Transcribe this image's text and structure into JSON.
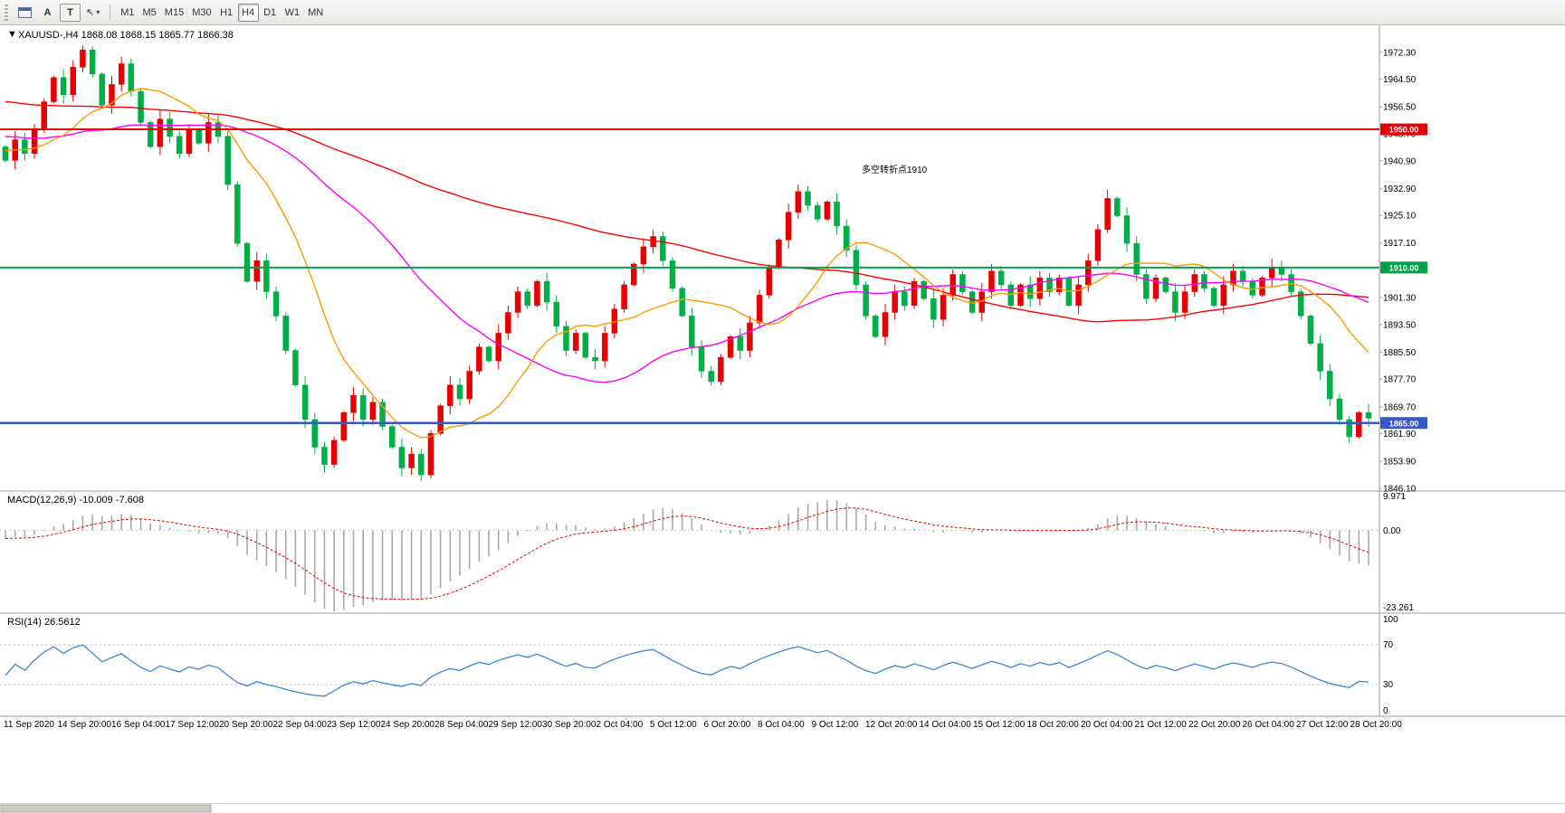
{
  "toolbar": {
    "button_a": "A",
    "button_t": "T",
    "cursor_icon": "↖",
    "caret": "▾",
    "timeframes": [
      "M1",
      "M5",
      "M15",
      "M30",
      "H1",
      "H4",
      "D1",
      "W1",
      "MN"
    ],
    "active_timeframe": "H4"
  },
  "chart": {
    "title_marker": "▼",
    "title": "XAUUSD-,H4  1868.08 1868.15 1865.77 1866.38",
    "symbol": "XAUUSD-",
    "timeframe": "H4",
    "annotation": {
      "text": "多空转折点1910",
      "color": "#ee1b1b"
    },
    "y_axis": {
      "labels": [
        "1972.30",
        "1964.50",
        "1956.50",
        "1948.70",
        "1940.90",
        "1932.90",
        "1925.10",
        "1917.10",
        "1909.30",
        "1901.30",
        "1893.50",
        "1885.50",
        "1877.70",
        "1869.70",
        "1861.90",
        "1853.90",
        "1846.10"
      ]
    },
    "price_tags": [
      {
        "label": "1950.00",
        "price": 1950.0,
        "color": "#e60000",
        "width": 2
      },
      {
        "label": "1910.00",
        "price": 1910.0,
        "color": "#00a14b",
        "width": 2
      },
      {
        "label": "1865.00",
        "price": 1865.0,
        "color": "#3657c8",
        "width": 2.5
      }
    ],
    "x_axis": {
      "labels": [
        "11 Sep 2020",
        "14 Sep 20:00",
        "16 Sep 04:00",
        "17 Sep 12:00",
        "20 Sep 20:00",
        "22 Sep 04:00",
        "23 Sep 12:00",
        "24 Sep 20:00",
        "28 Sep 04:00",
        "29 Sep 12:00",
        "30 Sep 20:00",
        "2 Oct 04:00",
        "5 Oct 12:00",
        "6 Oct 20:00",
        "8 Oct 04:00",
        "9 Oct 12:00",
        "12 Oct 20:00",
        "14 Oct 04:00",
        "15 Oct 12:00",
        "18 Oct 20:00",
        "20 Oct 04:00",
        "21 Oct 12:00",
        "22 Oct 20:00",
        "26 Oct 04:00",
        "27 Oct 12:00",
        "28 Oct 20:00"
      ]
    }
  },
  "panels": {
    "macd": {
      "title": "MACD(12,26,9) -10.009 -7.608",
      "axis_labels": [
        "9.971",
        "0.00",
        "-23.261"
      ],
      "axis_values": [
        9.971,
        0,
        -23.261
      ]
    },
    "rsi": {
      "title": "RSI(14) 26.5612",
      "axis_labels": [
        "100",
        "70",
        "30",
        "0"
      ],
      "axis_values": [
        100,
        70,
        30,
        0
      ],
      "guide_levels": [
        70,
        30
      ]
    }
  },
  "chart_data": {
    "type": "candlestick",
    "title": "XAUUSD H4",
    "ohlc_current": {
      "open": 1868.08,
      "high": 1868.15,
      "low": 1865.77,
      "close": 1866.38
    },
    "levels": {
      "resistance": 1950.0,
      "pivot": 1910.0,
      "support": 1865.0
    },
    "y_axis_range": [
      1844.5,
      1977.5
    ],
    "x_axis_labels": [
      "11 Sep 2020",
      "14 Sep 20:00",
      "16 Sep 04:00",
      "17 Sep 12:00",
      "20 Sep 20:00",
      "22 Sep 04:00",
      "23 Sep 12:00",
      "24 Sep 20:00",
      "28 Sep 04:00",
      "29 Sep 12:00",
      "30 Sep 20:00",
      "2 Oct 04:00",
      "5 Oct 12:00",
      "6 Oct 20:00",
      "8 Oct 04:00",
      "9 Oct 12:00",
      "12 Oct 20:00",
      "14 Oct 04:00",
      "15 Oct 12:00",
      "18 Oct 20:00",
      "20 Oct 04:00",
      "21 Oct 12:00",
      "22 Oct 20:00",
      "26 Oct 04:00",
      "27 Oct 12:00",
      "28 Oct 20:00"
    ],
    "closes": [
      1941,
      1947,
      1943,
      1950,
      1958,
      1965,
      1960,
      1968,
      1973,
      1966,
      1957,
      1963,
      1969,
      1961,
      1952,
      1945,
      1953,
      1948,
      1943,
      1950,
      1946,
      1952,
      1948,
      1934,
      1917,
      1906,
      1912,
      1903,
      1896,
      1886,
      1876,
      1866,
      1858,
      1853,
      1860,
      1868,
      1873,
      1866,
      1871,
      1864,
      1858,
      1852,
      1856,
      1850,
      1862,
      1870,
      1876,
      1872,
      1880,
      1887,
      1883,
      1891,
      1897,
      1903,
      1899,
      1906,
      1900,
      1893,
      1886,
      1891,
      1884,
      1883,
      1891,
      1898,
      1905,
      1911,
      1916,
      1919,
      1912,
      1904,
      1896,
      1887,
      1880,
      1877,
      1884,
      1890,
      1886,
      1894,
      1902,
      1910,
      1918,
      1926,
      1932,
      1928,
      1924,
      1929,
      1922,
      1915,
      1905,
      1896,
      1890,
      1897,
      1903,
      1899,
      1906,
      1901,
      1895,
      1902,
      1908,
      1903,
      1897,
      1903,
      1909,
      1905,
      1899,
      1905,
      1901,
      1907,
      1903,
      1907,
      1899,
      1905,
      1912,
      1921,
      1930,
      1925,
      1917,
      1908,
      1901,
      1907,
      1903,
      1897,
      1903,
      1908,
      1904,
      1899,
      1905,
      1909,
      1906,
      1902,
      1907,
      1910,
      1908,
      1903,
      1896,
      1888,
      1880,
      1872,
      1866,
      1861,
      1868,
      1866.4
    ],
    "wick_overrides": {
      "8": {
        "h": 1974.3
      },
      "33": {
        "l": 1850.6
      },
      "43": {
        "l": 1848.2
      },
      "73": {
        "l": 1875.9
      },
      "114": {
        "h": 1932.6
      },
      "139": {
        "l": 1859.2
      }
    },
    "indicators": {
      "ma_fast": {
        "period": 12,
        "color": "#ff9900"
      },
      "ma_mid": {
        "period": 34,
        "color": "#ff00ff"
      },
      "ma_slow": {
        "period": 90,
        "color": "#ff0000"
      },
      "macd": {
        "fast": 12,
        "slow": 26,
        "signal": 9,
        "current": [
          -10.009,
          -7.608
        ]
      },
      "rsi": {
        "period": 14,
        "current": 26.5612
      }
    },
    "colors": {
      "up": "#e60000",
      "down": "#00ae48",
      "macd_hist": "#a8a8a8",
      "macd_signal": "#e60000",
      "rsi": "#3d85d8"
    }
  }
}
